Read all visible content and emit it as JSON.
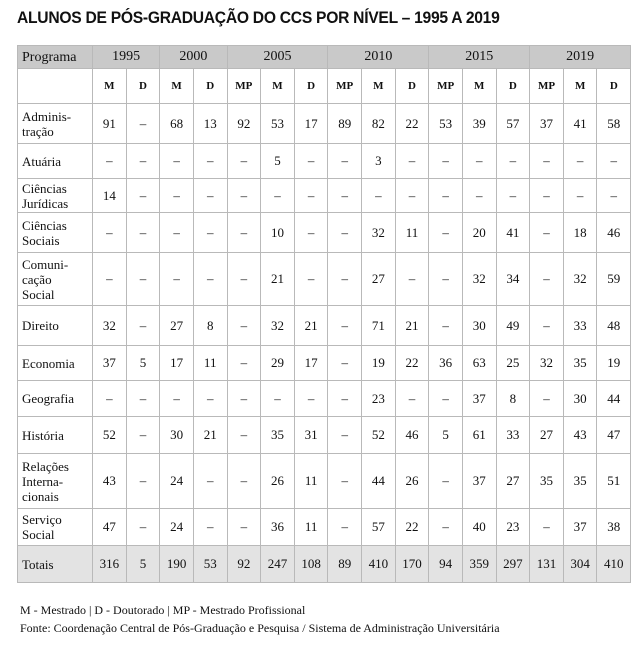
{
  "header": {
    "title": "ALUNOS DE PÓS-GRADUAÇÃO DO CCS POR NÍVEL – 1995 A 2019"
  },
  "table": {
    "first_header": "Programa",
    "groups": [
      {
        "year": "1995",
        "levels": [
          "M",
          "D"
        ]
      },
      {
        "year": "2000",
        "levels": [
          "M",
          "D"
        ]
      },
      {
        "year": "2005",
        "levels": [
          "MP",
          "M",
          "D"
        ]
      },
      {
        "year": "2010",
        "levels": [
          "MP",
          "M",
          "D"
        ]
      },
      {
        "year": "2015",
        "levels": [
          "MP",
          "M",
          "D"
        ]
      },
      {
        "year": "2019",
        "levels": [
          "MP",
          "M",
          "D"
        ]
      }
    ],
    "rows": [
      {
        "label": [
          "Adminis-",
          "tração"
        ],
        "cells": [
          91,
          "–",
          68,
          13,
          92,
          53,
          17,
          89,
          82,
          22,
          53,
          39,
          57,
          37,
          41,
          58
        ]
      },
      {
        "label": [
          "Atuária"
        ],
        "cells": [
          "–",
          "–",
          "–",
          "–",
          "–",
          5,
          "–",
          "–",
          3,
          "–",
          "–",
          "–",
          "–",
          "–",
          "–",
          "–"
        ]
      },
      {
        "label": [
          "Ciências",
          "Jurídicas"
        ],
        "cells": [
          14,
          "–",
          "–",
          "–",
          "–",
          "–",
          "–",
          "–",
          "–",
          "–",
          "–",
          "–",
          "–",
          "–",
          "–",
          "–"
        ]
      },
      {
        "label": [
          "Ciências",
          "Sociais"
        ],
        "cells": [
          "–",
          "–",
          "–",
          "–",
          "–",
          10,
          "–",
          "–",
          32,
          11,
          "–",
          20,
          41,
          "–",
          18,
          46
        ]
      },
      {
        "label": [
          "Comuni-",
          "cação",
          "Social"
        ],
        "cells": [
          "–",
          "–",
          "–",
          "–",
          "–",
          21,
          "–",
          "–",
          27,
          "–",
          "–",
          32,
          34,
          "–",
          32,
          59
        ]
      },
      {
        "label": [
          "Direito"
        ],
        "cells": [
          32,
          "–",
          27,
          8,
          "–",
          32,
          21,
          "–",
          71,
          21,
          "–",
          30,
          49,
          "–",
          33,
          48
        ]
      },
      {
        "label": [
          "Economia"
        ],
        "cells": [
          37,
          5,
          17,
          11,
          "–",
          29,
          17,
          "–",
          19,
          22,
          36,
          63,
          25,
          32,
          35,
          19
        ]
      },
      {
        "label": [
          "Geografia"
        ],
        "cells": [
          "–",
          "–",
          "–",
          "–",
          "–",
          "–",
          "–",
          "–",
          23,
          "–",
          "–",
          37,
          8,
          "–",
          30,
          44
        ]
      },
      {
        "label": [
          "História"
        ],
        "cells": [
          52,
          "–",
          30,
          21,
          "–",
          35,
          31,
          "–",
          52,
          46,
          5,
          61,
          33,
          27,
          43,
          47
        ]
      },
      {
        "label": [
          "Relações",
          "Interna-",
          "cionais"
        ],
        "cells": [
          43,
          "–",
          24,
          "–",
          "–",
          26,
          11,
          "–",
          44,
          26,
          "–",
          37,
          27,
          35,
          35,
          51
        ]
      },
      {
        "label": [
          "Serviço",
          "Social"
        ],
        "cells": [
          47,
          "–",
          24,
          "–",
          "–",
          36,
          11,
          "–",
          57,
          22,
          "–",
          40,
          23,
          "–",
          37,
          38
        ]
      },
      {
        "label": [
          "Totais"
        ],
        "cells": [
          316,
          5,
          190,
          53,
          92,
          247,
          108,
          89,
          410,
          170,
          94,
          359,
          297,
          131,
          304,
          410
        ]
      }
    ]
  },
  "notes": [
    "M - Mestrado | D - Doutorado | MP - Mestrado Profissional",
    "Fonte: Coordenação Central de Pós-Graduação e Pesquisa / Sistema de Administração Universitária"
  ]
}
